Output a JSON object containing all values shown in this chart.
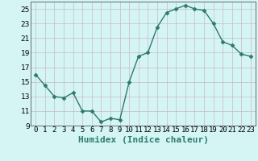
{
  "x": [
    0,
    1,
    2,
    3,
    4,
    5,
    6,
    7,
    8,
    9,
    10,
    11,
    12,
    13,
    14,
    15,
    16,
    17,
    18,
    19,
    20,
    21,
    22,
    23
  ],
  "y": [
    16,
    14.5,
    13,
    12.8,
    13.5,
    11,
    11,
    9.5,
    10,
    9.8,
    15,
    18.5,
    19,
    22.5,
    24.5,
    25,
    25.5,
    25,
    24.8,
    23,
    20.5,
    20,
    18.8,
    18.5
  ],
  "line_color": "#2d7a6b",
  "marker": "D",
  "marker_size": 2.5,
  "bg_color": "#d5f5f5",
  "grid_color_major": "#c8b8cc",
  "grid_color_minor": "#e0d8e4",
  "xlabel": "Humidex (Indice chaleur)",
  "xlim": [
    -0.5,
    23.5
  ],
  "ylim": [
    9,
    26
  ],
  "yticks": [
    9,
    11,
    13,
    15,
    17,
    19,
    21,
    23,
    25
  ],
  "xtick_labels": [
    "0",
    "1",
    "2",
    "3",
    "4",
    "5",
    "6",
    "7",
    "8",
    "9",
    "10",
    "11",
    "12",
    "13",
    "14",
    "15",
    "16",
    "17",
    "18",
    "19",
    "20",
    "21",
    "22",
    "23"
  ],
  "tick_fontsize": 6.5,
  "xlabel_fontsize": 8,
  "line_width": 1.0,
  "spine_color": "#555555"
}
